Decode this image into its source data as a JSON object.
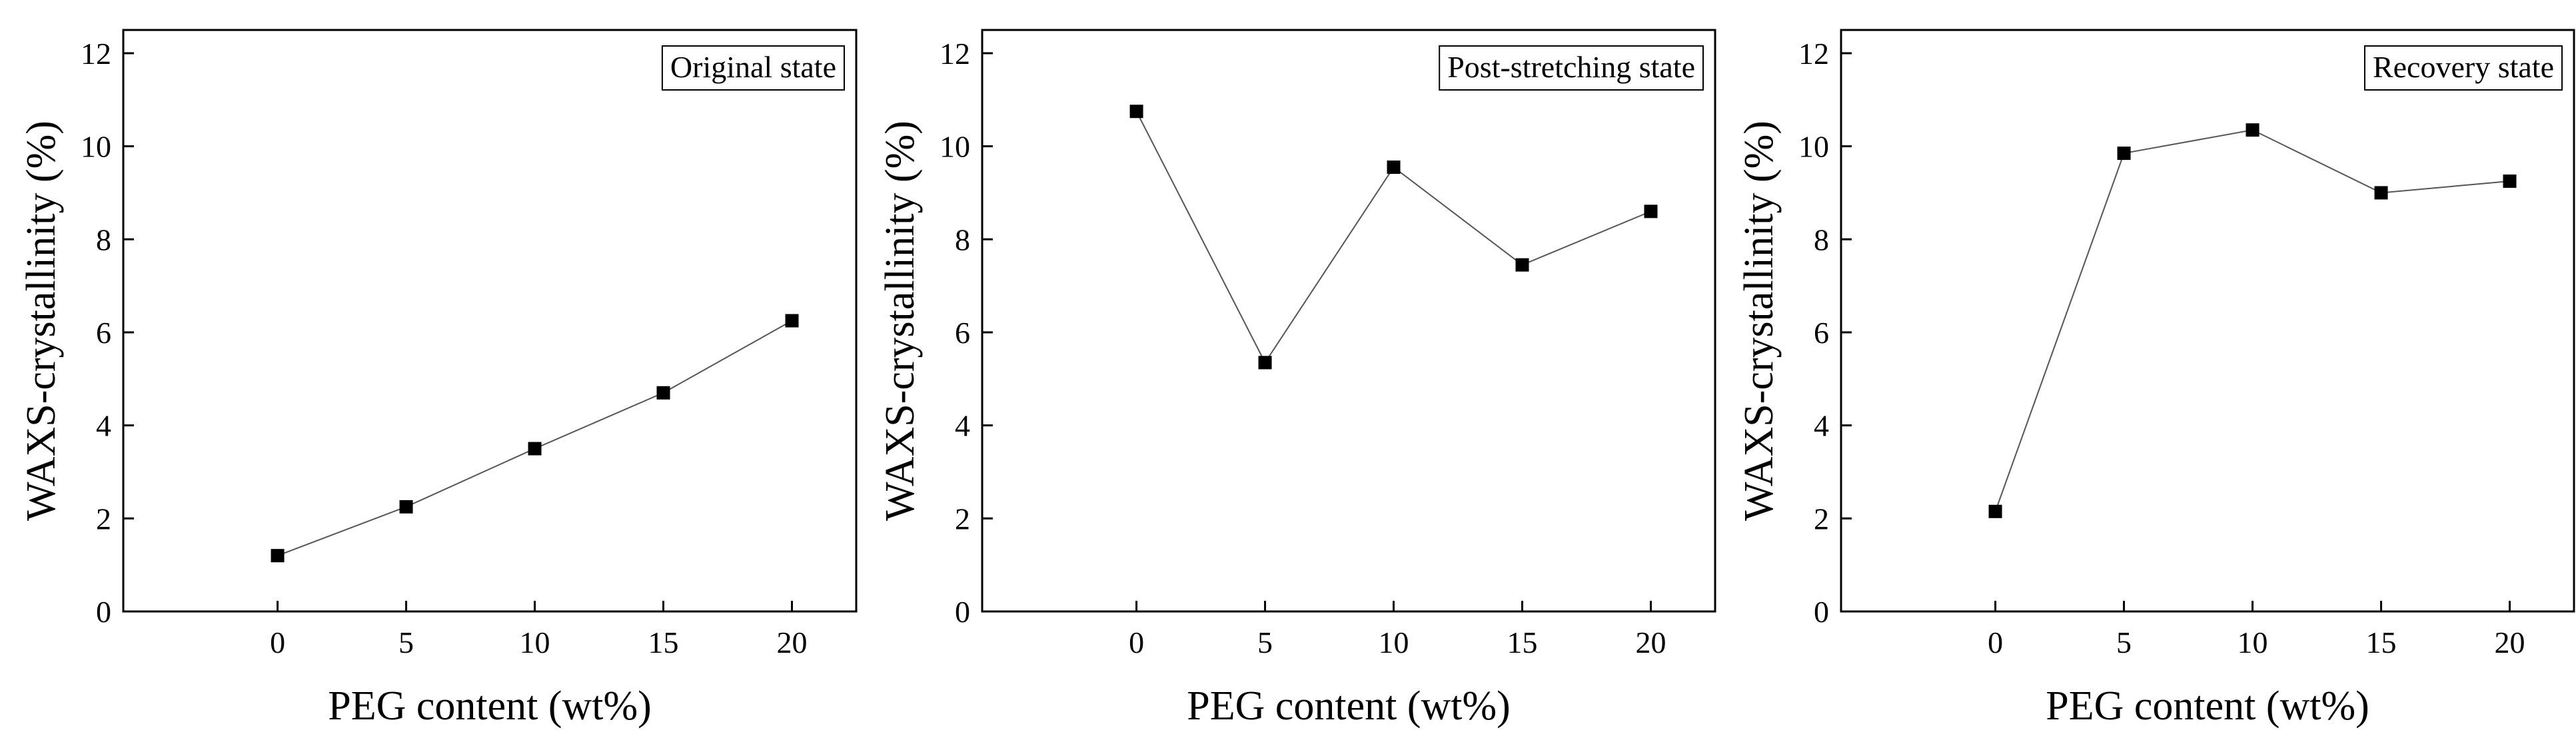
{
  "chart_data": [
    {
      "type": "line",
      "legend": "Original state",
      "legend_position": "top-right",
      "xlabel": "PEG content (wt%)",
      "ylabel": "WAXS-crystallinity (%)",
      "x": [
        0,
        5,
        10,
        15,
        20
      ],
      "values": [
        1.2,
        2.25,
        3.5,
        4.7,
        6.25
      ],
      "xlim": [
        -6,
        22.5
      ],
      "ylim": [
        0,
        12.5
      ],
      "xticks": [
        "0",
        "5",
        "10",
        "15",
        "20"
      ],
      "yticks": [
        "0",
        "2",
        "4",
        "6",
        "8",
        "10",
        "12"
      ],
      "grid": false
    },
    {
      "type": "line",
      "legend": "Post-stretching state",
      "legend_position": "top-right",
      "xlabel": "PEG content (wt%)",
      "ylabel": "WAXS-crystallinity (%)",
      "x": [
        0,
        5,
        10,
        15,
        20
      ],
      "values": [
        10.75,
        5.35,
        9.55,
        7.45,
        8.6
      ],
      "xlim": [
        -6,
        22.5
      ],
      "ylim": [
        0,
        12.5
      ],
      "xticks": [
        "0",
        "5",
        "10",
        "15",
        "20"
      ],
      "yticks": [
        "0",
        "2",
        "4",
        "6",
        "8",
        "10",
        "12"
      ],
      "grid": false
    },
    {
      "type": "line",
      "legend": "Recovery state",
      "legend_position": "top-right",
      "xlabel": "PEG content (wt%)",
      "ylabel": "WAXS-crystallinity (%)",
      "x": [
        0,
        5,
        10,
        15,
        20
      ],
      "values": [
        2.15,
        9.85,
        10.35,
        9.0,
        9.25
      ],
      "xlim": [
        -6,
        22.5
      ],
      "ylim": [
        0,
        12.5
      ],
      "xticks": [
        "0",
        "5",
        "10",
        "15",
        "20"
      ],
      "yticks": [
        "0",
        "2",
        "4",
        "6",
        "8",
        "10",
        "12"
      ],
      "grid": false
    }
  ]
}
